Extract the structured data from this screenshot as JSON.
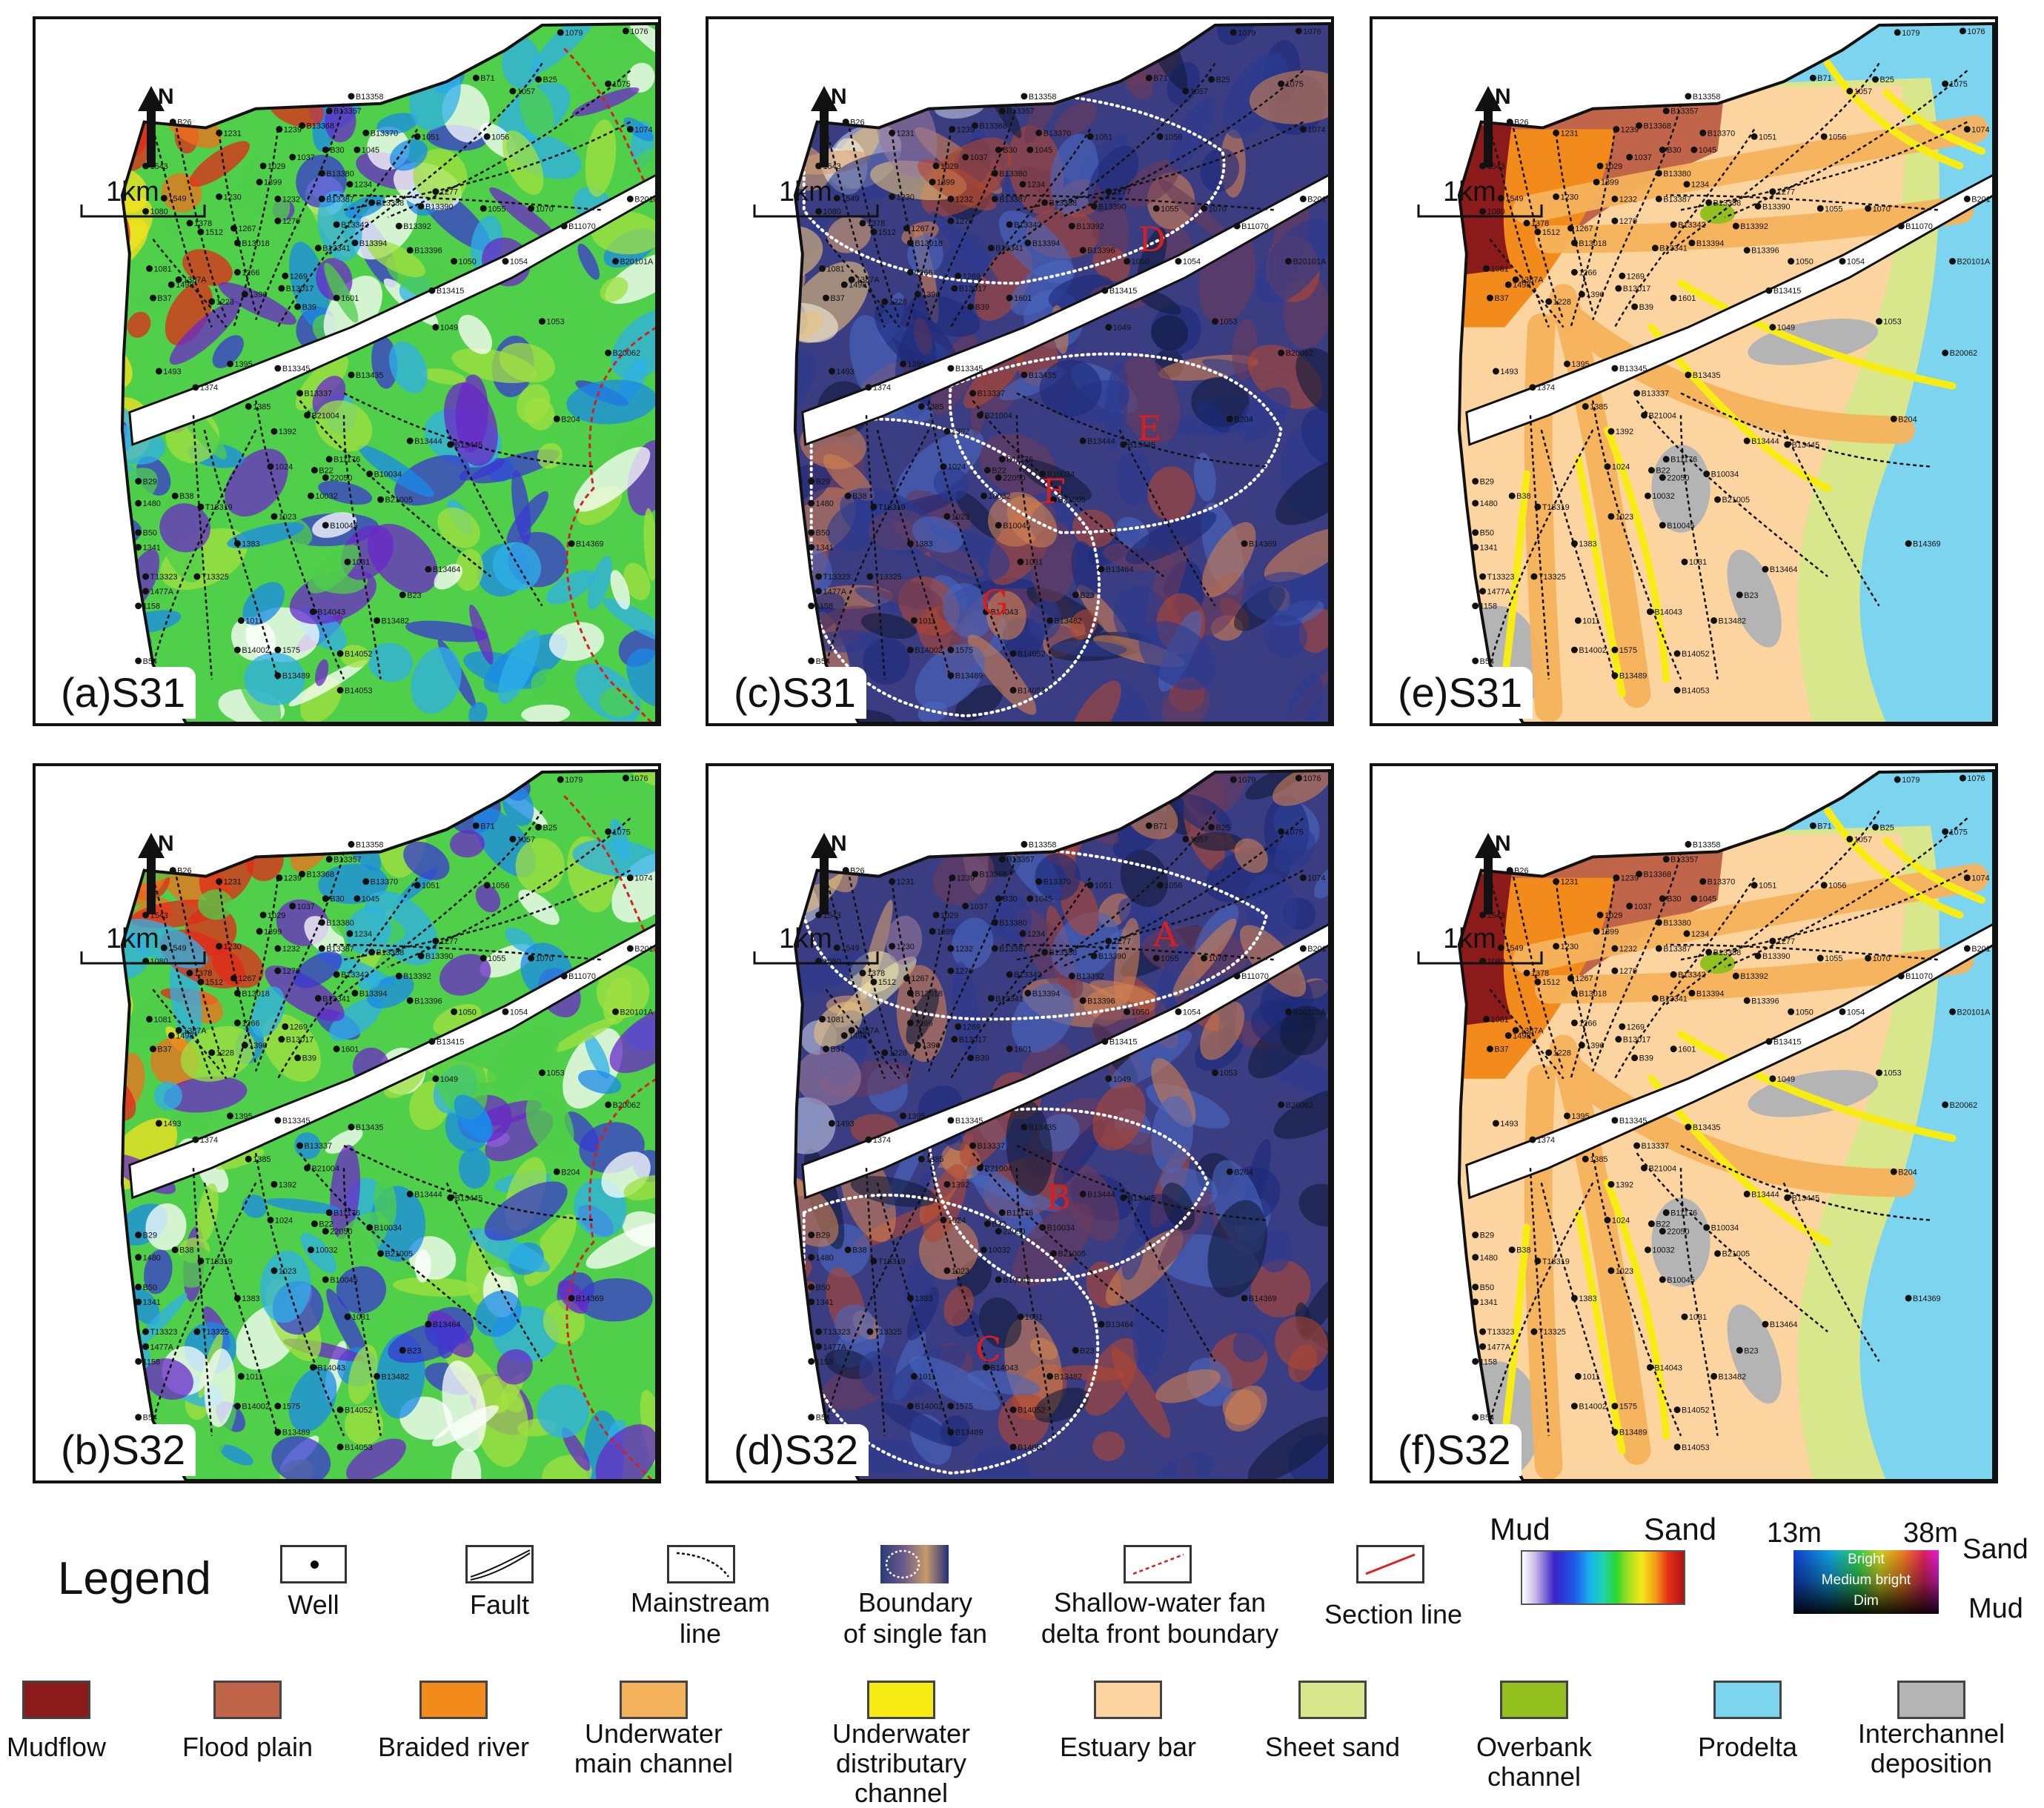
{
  "panels": [
    {
      "id": "a",
      "label": "(a)S31",
      "style": "amplitude",
      "letters": []
    },
    {
      "id": "c",
      "label": "(c)S31",
      "style": "rgb",
      "letters": [
        "D",
        "E",
        "F",
        "G"
      ]
    },
    {
      "id": "e",
      "label": "(e)S31",
      "style": "facies",
      "letters": []
    },
    {
      "id": "b",
      "label": "(b)S32",
      "style": "amplitude",
      "letters": []
    },
    {
      "id": "d",
      "label": "(d)S32",
      "style": "rgb",
      "letters": [
        "A",
        "B",
        "C"
      ]
    },
    {
      "id": "f",
      "label": "(f)S32",
      "style": "facies",
      "letters": []
    }
  ],
  "north_label": "N",
  "scale_label": "1km",
  "wells": [
    "1076",
    "1079",
    "1075",
    "B71",
    "B25",
    "1057",
    "B13358",
    "B13357",
    "B26",
    "B13368",
    "1231",
    "1239",
    "1074",
    "1543",
    "B13370",
    "1051",
    "B30",
    "1045",
    "1056",
    "1037",
    "1029",
    "B13380",
    "1234",
    "1399",
    "1277",
    "1549",
    "1230",
    "1232",
    "B13387",
    "B13388",
    "B13390",
    "1055",
    "1070",
    "B201",
    "1080",
    "1378",
    "1270",
    "B13342",
    "B13392",
    "B11070",
    "1267",
    "1512",
    "B13018",
    "B13394",
    "B13341",
    "B13396",
    "1050",
    "1054",
    "B20101A",
    "1081",
    "1387A",
    "1266",
    "1269",
    "1498",
    "B13017",
    "B13415",
    "1601",
    "B37",
    "1396",
    "1228",
    "B39",
    "1053",
    "1049",
    "B20062",
    "1493",
    "1395",
    "B13345",
    "B13435",
    "1374",
    "B13337",
    "1385",
    "1392",
    "B21004",
    "B204",
    "B13444",
    "B13445",
    "B11176",
    "1024",
    "B22",
    "22050",
    "B10034",
    "B29",
    "B38",
    "B21005",
    "1480",
    "T13319",
    "1023",
    "10032",
    "B10045",
    "B50",
    "1341",
    "1383",
    "B14369",
    "1031",
    "B13464",
    "T13323",
    "T13325",
    "1477A",
    "1158",
    "B23",
    "1011",
    "B14043",
    "B13482",
    "B14002",
    "1575",
    "B14052",
    "B54",
    "B13489",
    "B14053"
  ],
  "legend": {
    "title": "Legend",
    "symbols": [
      {
        "name": "well",
        "label": "Well"
      },
      {
        "name": "fault",
        "label": "Fault"
      },
      {
        "name": "mainstream",
        "label": "Mainstream\nline"
      },
      {
        "name": "single-fan",
        "label": "Boundary\nof  single fan"
      },
      {
        "name": "front-boundary",
        "label": "Shallow-water fan\ndelta front boundary"
      },
      {
        "name": "section-line",
        "label": "Section line"
      }
    ],
    "amplitude_bar": {
      "left": "Mud",
      "right": "Sand"
    },
    "rgb_bar": {
      "left": "13m",
      "right": "38m",
      "top_right": "Sand",
      "bottom_right": "Mud",
      "levels": [
        "Bright",
        "Medium bright",
        "Dim"
      ]
    },
    "facies": [
      {
        "label": "Mudflow",
        "color": "#8b1a1a"
      },
      {
        "label": "Flood plain",
        "color": "#c0644a"
      },
      {
        "label": "Braided river",
        "color": "#f28a1c"
      },
      {
        "label": "Underwater\nmain channel",
        "color": "#f5b25c"
      },
      {
        "label": "Underwater\ndistributary channel",
        "color": "#f7ec14"
      },
      {
        "label": "Estuary bar",
        "color": "#fcd4a0"
      },
      {
        "label": "Sheet sand",
        "color": "#d8e68c"
      },
      {
        "label": "Overbank channel",
        "color": "#93c01f"
      },
      {
        "label": "Prodelta",
        "color": "#7dd4ef"
      },
      {
        "label": "Interchannel\ndeposition",
        "color": "#b4b4b4"
      }
    ]
  }
}
